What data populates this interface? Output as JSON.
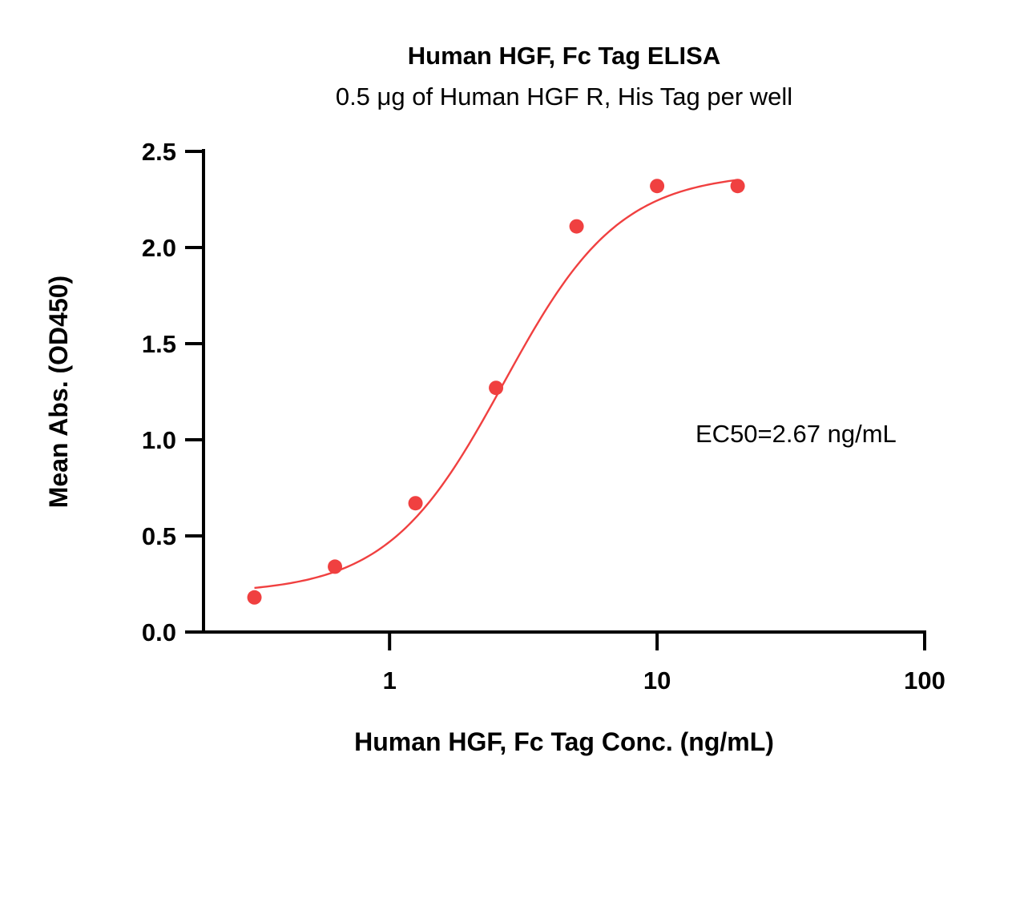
{
  "chart_data": {
    "type": "scatter",
    "title": "Human HGF, Fc Tag ELISA",
    "subtitle": "0.5 μg of Human HGF R, His Tag per well",
    "xlabel": "Human HGF, Fc Tag Conc. (ng/mL)",
    "ylabel": "Mean Abs. (OD450)",
    "x_scale": "log",
    "xlim": [
      0.2,
      100
    ],
    "ylim": [
      0,
      2.5
    ],
    "x_ticks": [
      1,
      10,
      100
    ],
    "x_tick_labels": [
      "1",
      "10",
      "100"
    ],
    "y_ticks": [
      0,
      0.5,
      1.0,
      1.5,
      2.0,
      2.5
    ],
    "y_tick_labels": [
      "0.0",
      "0.5",
      "1.0",
      "1.5",
      "2.0",
      "2.5"
    ],
    "grid": false,
    "series": [
      {
        "x": [
          0.3125,
          0.625,
          1.25,
          2.5,
          5,
          10,
          20
        ],
        "y": [
          0.18,
          0.34,
          0.67,
          1.27,
          2.11,
          2.32,
          2.32
        ],
        "color": "#F04040",
        "fit": {
          "model": "4PL",
          "bottom": 0.2,
          "top": 2.39,
          "ec50": 2.67,
          "hill": 2.0
        }
      }
    ],
    "annotations": [
      {
        "text": "EC50=2.67 ng/mL"
      }
    ]
  }
}
